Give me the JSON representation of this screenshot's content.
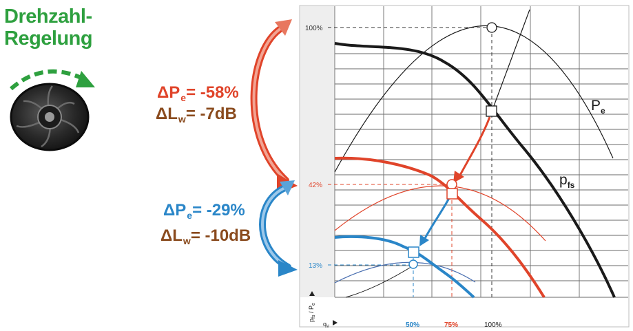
{
  "title": {
    "line1": "Drehzahl-",
    "line2": "Regelung"
  },
  "stats": [
    {
      "symbol": "ΔP",
      "sub": "e",
      "value": "= -58%"
    },
    {
      "symbol": "ΔL",
      "sub": "w",
      "value": "= -7dB"
    },
    {
      "symbol": "ΔP",
      "sub": "e",
      "value": "= -29%"
    },
    {
      "symbol": "ΔL",
      "sub": "w",
      "value": "= -10dB"
    }
  ],
  "diagram": {
    "y_labels": [
      "100%",
      "42%",
      "13%"
    ],
    "x_labels": [
      "50%",
      "75%",
      "100%"
    ],
    "y_axis": {
      "main": "p",
      "sub1": "fs",
      "sep": " / ",
      "main2": "P",
      "sub2": "e"
    },
    "x_axis": {
      "main": "q",
      "sub": "V"
    },
    "curve_labels": [
      {
        "main": "P",
        "sub": "e"
      },
      {
        "main": "p",
        "sub": "fs"
      }
    ]
  },
  "colors": {
    "green": "#2ea03f",
    "red": "#e0442a",
    "blue": "#2a86c8",
    "brown": "#8a4b1e",
    "black": "#1a1a1a"
  },
  "icons": [
    "fan-icon",
    "rotation-arrow-icon"
  ]
}
